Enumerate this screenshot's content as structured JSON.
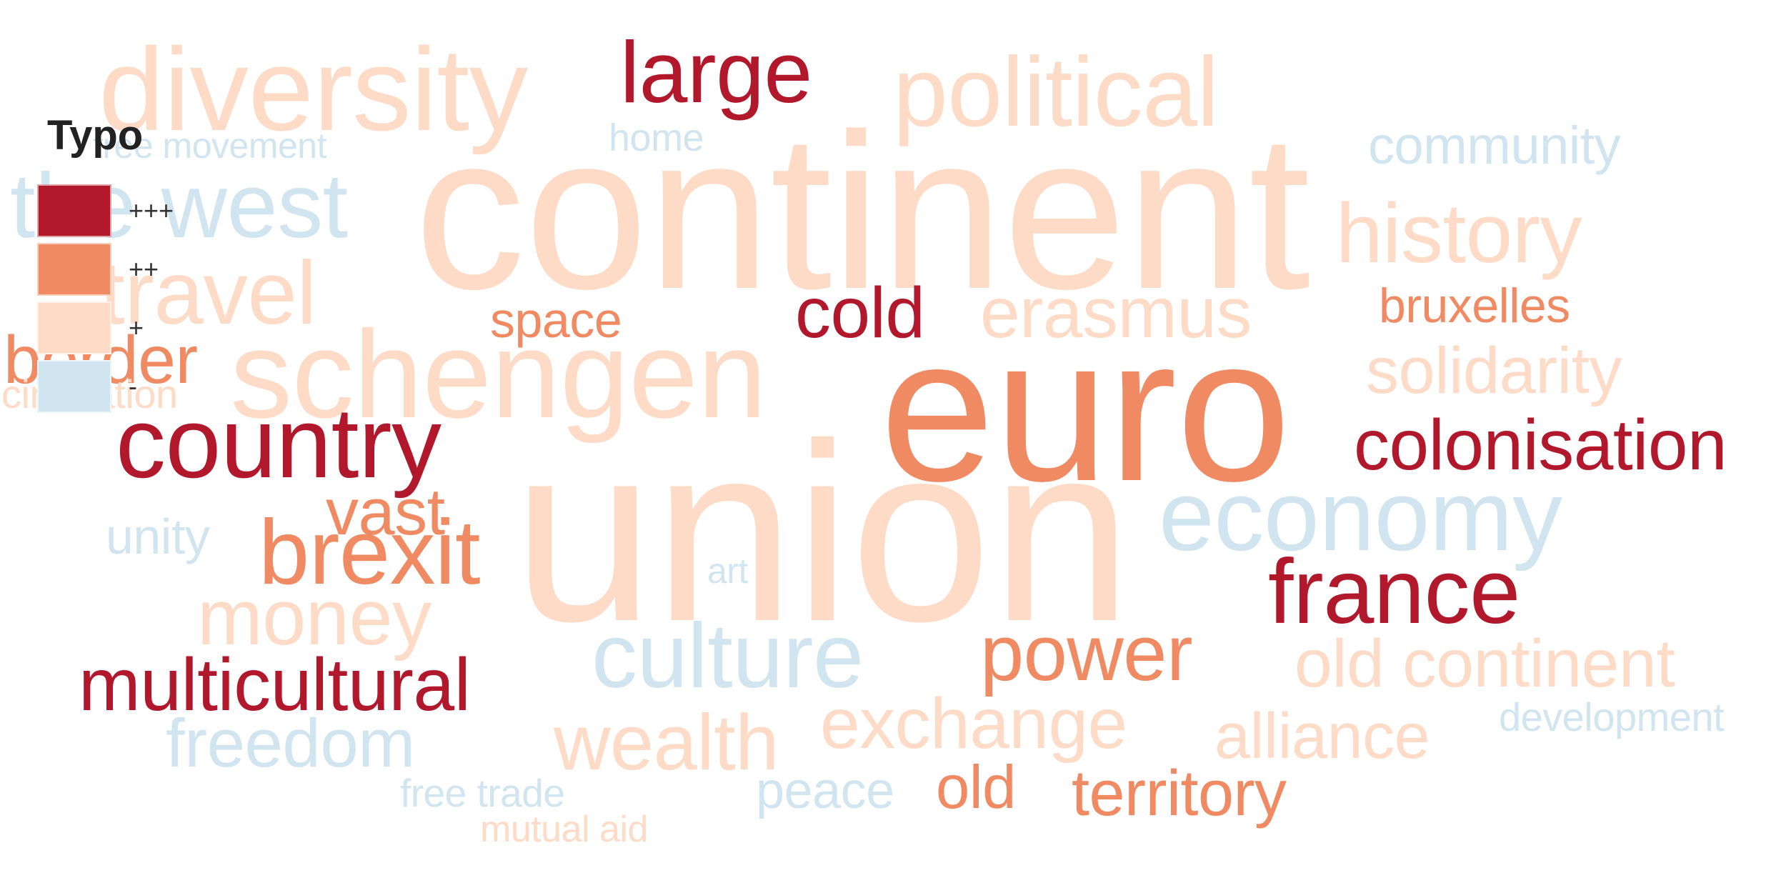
{
  "legend": {
    "title": "Typo",
    "items": [
      {
        "label": "+++",
        "color": "#b2182b"
      },
      {
        "label": "++",
        "color": "#ef8a62"
      },
      {
        "label": "+",
        "color": "#fddbc7"
      },
      {
        "label": "-",
        "color": "#d1e5f0"
      }
    ]
  },
  "words": [
    {
      "text": "diversity",
      "category": "+"
    },
    {
      "text": "large",
      "category": "+++"
    },
    {
      "text": "political",
      "category": "+"
    },
    {
      "text": "free movement",
      "category": "-"
    },
    {
      "text": "home",
      "category": "-"
    },
    {
      "text": "community",
      "category": "-"
    },
    {
      "text": "the west",
      "category": "-"
    },
    {
      "text": "continent",
      "category": "+"
    },
    {
      "text": "history",
      "category": "+"
    },
    {
      "text": "travel",
      "category": "+"
    },
    {
      "text": "space",
      "category": "++"
    },
    {
      "text": "cold",
      "category": "+++"
    },
    {
      "text": "erasmus",
      "category": "+"
    },
    {
      "text": "bruxelles",
      "category": "++"
    },
    {
      "text": "border",
      "category": "++"
    },
    {
      "text": "schengen",
      "category": "+"
    },
    {
      "text": "solidarity",
      "category": "+"
    },
    {
      "text": "euro",
      "category": "++"
    },
    {
      "text": "circulation",
      "category": "+"
    },
    {
      "text": "country",
      "category": "+++"
    },
    {
      "text": "colonisation",
      "category": "+++"
    },
    {
      "text": "vast",
      "category": "++"
    },
    {
      "text": "union",
      "category": "+"
    },
    {
      "text": "economy",
      "category": "-"
    },
    {
      "text": "unity",
      "category": "-"
    },
    {
      "text": "brexit",
      "category": "++"
    },
    {
      "text": "art",
      "category": "-"
    },
    {
      "text": "france",
      "category": "+++"
    },
    {
      "text": "money",
      "category": "+"
    },
    {
      "text": "culture",
      "category": "-"
    },
    {
      "text": "power",
      "category": "++"
    },
    {
      "text": "old continent",
      "category": "+"
    },
    {
      "text": "multicultural",
      "category": "+++"
    },
    {
      "text": "freedom",
      "category": "-"
    },
    {
      "text": "wealth",
      "category": "+"
    },
    {
      "text": "exchange",
      "category": "+"
    },
    {
      "text": "alliance",
      "category": "+"
    },
    {
      "text": "development",
      "category": "-"
    },
    {
      "text": "free trade",
      "category": "-"
    },
    {
      "text": "peace",
      "category": "-"
    },
    {
      "text": "old",
      "category": "++"
    },
    {
      "text": "territory",
      "category": "++"
    },
    {
      "text": "mutual aid",
      "category": "+"
    }
  ]
}
